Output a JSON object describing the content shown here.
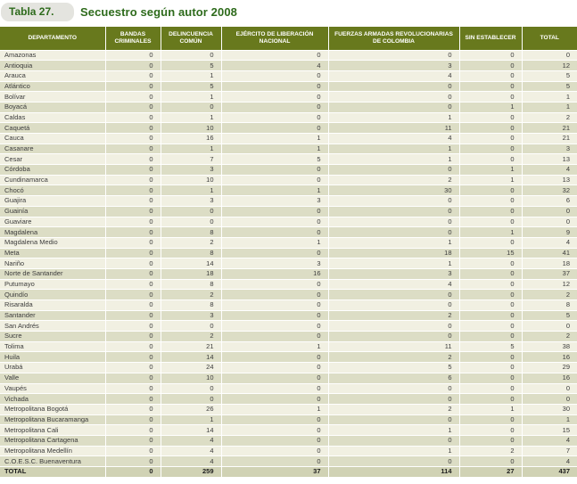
{
  "title": {
    "badge": "Tabla 27.",
    "text": "Secuestro según autor 2008"
  },
  "colors": {
    "header_bg": "#68791d",
    "header_text": "#ffffff",
    "title_green": "#2e6b1c",
    "pill_bg": "#e4e4df",
    "row_light": "#f1f0e2",
    "row_dark": "#dcddc5",
    "total_bg": "#d0d2b4"
  },
  "table": {
    "columns": [
      "DEPARTAMENTO",
      "BANDAS CRIMINALES",
      "DELINCUENCIA COMÚN",
      "EJÉRCITO DE LIBERACIÓN NACIONAL",
      "FUERZAS ARMADAS REVOLUCIONARIAS DE COLOMBIA",
      "SIN ESTABLECER",
      "TOTAL"
    ],
    "rows": [
      {
        "departamento": "Amazonas",
        "values": [
          0,
          0,
          0,
          0,
          0,
          0
        ]
      },
      {
        "departamento": "Antioquia",
        "values": [
          0,
          5,
          4,
          3,
          0,
          12
        ]
      },
      {
        "departamento": "Arauca",
        "values": [
          0,
          1,
          0,
          4,
          0,
          5
        ]
      },
      {
        "departamento": "Atlántico",
        "values": [
          0,
          5,
          0,
          0,
          0,
          5
        ]
      },
      {
        "departamento": "Bolívar",
        "values": [
          0,
          1,
          0,
          0,
          0,
          1
        ]
      },
      {
        "departamento": "Boyacá",
        "values": [
          0,
          0,
          0,
          0,
          1,
          1
        ]
      },
      {
        "departamento": "Caldas",
        "values": [
          0,
          1,
          0,
          1,
          0,
          2
        ]
      },
      {
        "departamento": "Caquetá",
        "values": [
          0,
          10,
          0,
          11,
          0,
          21
        ]
      },
      {
        "departamento": "Cauca",
        "values": [
          0,
          16,
          1,
          4,
          0,
          21
        ]
      },
      {
        "departamento": "Casanare",
        "values": [
          0,
          1,
          1,
          1,
          0,
          3
        ]
      },
      {
        "departamento": "Cesar",
        "values": [
          0,
          7,
          5,
          1,
          0,
          13
        ]
      },
      {
        "departamento": "Córdoba",
        "values": [
          0,
          3,
          0,
          0,
          1,
          4
        ]
      },
      {
        "departamento": "Cundinamarca",
        "values": [
          0,
          10,
          0,
          2,
          1,
          13
        ]
      },
      {
        "departamento": "Chocó",
        "values": [
          0,
          1,
          1,
          30,
          0,
          32
        ]
      },
      {
        "departamento": "Guajira",
        "values": [
          0,
          3,
          3,
          0,
          0,
          6
        ]
      },
      {
        "departamento": "Guainía",
        "values": [
          0,
          0,
          0,
          0,
          0,
          0
        ]
      },
      {
        "departamento": "Guaviare",
        "values": [
          0,
          0,
          0,
          0,
          0,
          0
        ]
      },
      {
        "departamento": "Magdalena",
        "values": [
          0,
          8,
          0,
          0,
          1,
          9
        ]
      },
      {
        "departamento": "Magdalena Medio",
        "values": [
          0,
          2,
          1,
          1,
          0,
          4
        ]
      },
      {
        "departamento": "Meta",
        "values": [
          0,
          8,
          0,
          18,
          15,
          41
        ]
      },
      {
        "departamento": "Nariño",
        "values": [
          0,
          14,
          3,
          1,
          0,
          18
        ]
      },
      {
        "departamento": "Norte de Santander",
        "values": [
          0,
          18,
          16,
          3,
          0,
          37
        ]
      },
      {
        "departamento": "Putumayo",
        "values": [
          0,
          8,
          0,
          4,
          0,
          12
        ]
      },
      {
        "departamento": "Quindío",
        "values": [
          0,
          2,
          0,
          0,
          0,
          2
        ]
      },
      {
        "departamento": "Risaralda",
        "values": [
          0,
          8,
          0,
          0,
          0,
          8
        ]
      },
      {
        "departamento": "Santander",
        "values": [
          0,
          3,
          0,
          2,
          0,
          5
        ]
      },
      {
        "departamento": "San Andrés",
        "values": [
          0,
          0,
          0,
          0,
          0,
          0
        ]
      },
      {
        "departamento": "Sucre",
        "values": [
          0,
          2,
          0,
          0,
          0,
          2
        ]
      },
      {
        "departamento": "Tolima",
        "values": [
          0,
          21,
          1,
          11,
          5,
          38
        ]
      },
      {
        "departamento": "Huila",
        "values": [
          0,
          14,
          0,
          2,
          0,
          16
        ]
      },
      {
        "departamento": "Urabá",
        "values": [
          0,
          24,
          0,
          5,
          0,
          29
        ]
      },
      {
        "departamento": "Valle",
        "values": [
          0,
          10,
          0,
          6,
          0,
          16
        ]
      },
      {
        "departamento": "Vaupés",
        "values": [
          0,
          0,
          0,
          0,
          0,
          0
        ]
      },
      {
        "departamento": "Vichada",
        "values": [
          0,
          0,
          0,
          0,
          0,
          0
        ]
      },
      {
        "departamento": "Metropolitana Bogotá",
        "values": [
          0,
          26,
          1,
          2,
          1,
          30
        ]
      },
      {
        "departamento": "Metropolitana Bucaramanga",
        "values": [
          0,
          1,
          0,
          0,
          0,
          1
        ]
      },
      {
        "departamento": "Metropolitana Cali",
        "values": [
          0,
          14,
          0,
          1,
          0,
          15
        ]
      },
      {
        "departamento": "Metropolitana Cartagena",
        "values": [
          0,
          4,
          0,
          0,
          0,
          4
        ]
      },
      {
        "departamento": "Metropolitana Medellín",
        "values": [
          0,
          4,
          0,
          1,
          2,
          7
        ]
      },
      {
        "departamento": "C.O.E.S.C. Buenaventura",
        "values": [
          0,
          4,
          0,
          0,
          0,
          4
        ]
      }
    ],
    "total_row": {
      "label": "TOTAL",
      "values": [
        0,
        259,
        37,
        114,
        27,
        437
      ]
    }
  }
}
